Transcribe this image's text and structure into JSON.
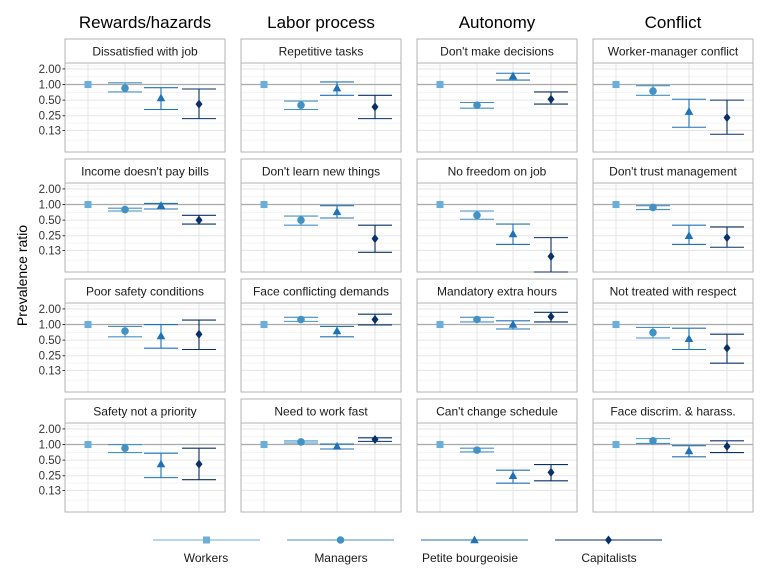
{
  "chart_data": {
    "type": "scatter",
    "ylabel": "Prevalence ratio",
    "y_scale": "log",
    "ylim": [
      0.05,
      2.6
    ],
    "y_ticks": [
      2.0,
      1.0,
      0.5,
      0.25,
      0.13
    ],
    "y_tick_labels": [
      "2.00",
      "1.00",
      "0.50",
      "0.25",
      "0.13"
    ],
    "reference_line": 1.0,
    "grid": true,
    "legend_position": "bottom",
    "column_headers": [
      "Rewards/hazards",
      "Labor process",
      "Autonomy",
      "Conflict"
    ],
    "series": [
      {
        "name": "Workers",
        "color": "#6baed6",
        "shape": "square"
      },
      {
        "name": "Managers",
        "color": "#4292c6",
        "shape": "circle"
      },
      {
        "name": "Petite bourgeoisie",
        "color": "#2171b5",
        "shape": "triangle"
      },
      {
        "name": "Capitalists",
        "color": "#08306b",
        "shape": "diamond"
      }
    ],
    "panels": [
      {
        "title": "Dissatisfied with job",
        "points": [
          {
            "est": 1.0,
            "lo": 1.0,
            "hi": 1.0
          },
          {
            "est": 0.85,
            "lo": 0.72,
            "hi": 1.08
          },
          {
            "est": 0.55,
            "lo": 0.33,
            "hi": 0.87
          },
          {
            "est": 0.42,
            "lo": 0.22,
            "hi": 0.82
          }
        ]
      },
      {
        "title": "Repetitive tasks",
        "points": [
          {
            "est": 1.0,
            "lo": 1.0,
            "hi": 1.0
          },
          {
            "est": 0.4,
            "lo": 0.33,
            "hi": 0.48
          },
          {
            "est": 0.85,
            "lo": 0.62,
            "hi": 1.12
          },
          {
            "est": 0.37,
            "lo": 0.22,
            "hi": 0.62
          }
        ]
      },
      {
        "title": "Don't make decisions",
        "points": [
          {
            "est": 1.0,
            "lo": 1.0,
            "hi": 1.0
          },
          {
            "est": 0.4,
            "lo": 0.35,
            "hi": 0.45
          },
          {
            "est": 1.45,
            "lo": 1.22,
            "hi": 1.65
          },
          {
            "est": 0.52,
            "lo": 0.42,
            "hi": 0.72
          }
        ]
      },
      {
        "title": "Worker-manager conflict",
        "points": [
          {
            "est": 1.0,
            "lo": 1.0,
            "hi": 1.0
          },
          {
            "est": 0.75,
            "lo": 0.62,
            "hi": 0.95
          },
          {
            "est": 0.3,
            "lo": 0.15,
            "hi": 0.52
          },
          {
            "est": 0.23,
            "lo": 0.11,
            "hi": 0.5
          }
        ]
      },
      {
        "title": "Income doesn't pay bills",
        "points": [
          {
            "est": 1.0,
            "lo": 1.0,
            "hi": 1.0
          },
          {
            "est": 0.8,
            "lo": 0.75,
            "hi": 0.85
          },
          {
            "est": 0.95,
            "lo": 0.82,
            "hi": 1.05
          },
          {
            "est": 0.5,
            "lo": 0.42,
            "hi": 0.62
          }
        ]
      },
      {
        "title": "Don't learn new things",
        "points": [
          {
            "est": 1.0,
            "lo": 1.0,
            "hi": 1.0
          },
          {
            "est": 0.5,
            "lo": 0.4,
            "hi": 0.6
          },
          {
            "est": 0.72,
            "lo": 0.55,
            "hi": 0.95
          },
          {
            "est": 0.22,
            "lo": 0.12,
            "hi": 0.4
          }
        ]
      },
      {
        "title": "No freedom on job",
        "points": [
          {
            "est": 1.0,
            "lo": 1.0,
            "hi": 1.0
          },
          {
            "est": 0.62,
            "lo": 0.52,
            "hi": 0.75
          },
          {
            "est": 0.27,
            "lo": 0.17,
            "hi": 0.42
          },
          {
            "est": 0.1,
            "lo": 0.05,
            "hi": 0.23
          }
        ]
      },
      {
        "title": "Don't trust management",
        "points": [
          {
            "est": 1.0,
            "lo": 1.0,
            "hi": 1.0
          },
          {
            "est": 0.88,
            "lo": 0.8,
            "hi": 0.95
          },
          {
            "est": 0.25,
            "lo": 0.17,
            "hi": 0.4
          },
          {
            "est": 0.23,
            "lo": 0.15,
            "hi": 0.37
          }
        ]
      },
      {
        "title": "Poor safety conditions",
        "points": [
          {
            "est": 1.0,
            "lo": 1.0,
            "hi": 1.0
          },
          {
            "est": 0.75,
            "lo": 0.58,
            "hi": 0.92
          },
          {
            "est": 0.6,
            "lo": 0.35,
            "hi": 1.0
          },
          {
            "est": 0.65,
            "lo": 0.33,
            "hi": 1.22
          }
        ]
      },
      {
        "title": "Face conflicting demands",
        "points": [
          {
            "est": 1.0,
            "lo": 1.0,
            "hi": 1.0
          },
          {
            "est": 1.25,
            "lo": 1.15,
            "hi": 1.38
          },
          {
            "est": 0.75,
            "lo": 0.58,
            "hi": 0.92
          },
          {
            "est": 1.25,
            "lo": 0.98,
            "hi": 1.58
          }
        ]
      },
      {
        "title": "Mandatory extra hours",
        "points": [
          {
            "est": 1.0,
            "lo": 1.0,
            "hi": 1.0
          },
          {
            "est": 1.25,
            "lo": 1.12,
            "hi": 1.38
          },
          {
            "est": 1.0,
            "lo": 0.82,
            "hi": 1.18
          },
          {
            "est": 1.42,
            "lo": 1.12,
            "hi": 1.72
          }
        ]
      },
      {
        "title": "Not treated with respect",
        "points": [
          {
            "est": 1.0,
            "lo": 1.0,
            "hi": 1.0
          },
          {
            "est": 0.7,
            "lo": 0.55,
            "hi": 0.88
          },
          {
            "est": 0.53,
            "lo": 0.33,
            "hi": 0.85
          },
          {
            "est": 0.35,
            "lo": 0.18,
            "hi": 0.65
          }
        ]
      },
      {
        "title": "Safety not a priority",
        "points": [
          {
            "est": 1.0,
            "lo": 1.0,
            "hi": 1.0
          },
          {
            "est": 0.85,
            "lo": 0.7,
            "hi": 1.0
          },
          {
            "est": 0.42,
            "lo": 0.23,
            "hi": 0.68
          },
          {
            "est": 0.42,
            "lo": 0.21,
            "hi": 0.85
          }
        ]
      },
      {
        "title": "Need to work fast",
        "points": [
          {
            "est": 1.0,
            "lo": 1.0,
            "hi": 1.0
          },
          {
            "est": 1.12,
            "lo": 1.07,
            "hi": 1.17
          },
          {
            "est": 0.92,
            "lo": 0.82,
            "hi": 1.02
          },
          {
            "est": 1.25,
            "lo": 1.15,
            "hi": 1.35
          }
        ]
      },
      {
        "title": "Can't change schedule",
        "points": [
          {
            "est": 1.0,
            "lo": 1.0,
            "hi": 1.0
          },
          {
            "est": 0.78,
            "lo": 0.72,
            "hi": 0.85
          },
          {
            "est": 0.25,
            "lo": 0.18,
            "hi": 0.32
          },
          {
            "est": 0.29,
            "lo": 0.2,
            "hi": 0.41
          }
        ]
      },
      {
        "title": "Face discrim. & harass.",
        "points": [
          {
            "est": 1.0,
            "lo": 1.0,
            "hi": 1.0
          },
          {
            "est": 1.18,
            "lo": 1.05,
            "hi": 1.3
          },
          {
            "est": 0.75,
            "lo": 0.58,
            "hi": 0.95
          },
          {
            "est": 0.92,
            "lo": 0.7,
            "hi": 1.18
          }
        ]
      }
    ]
  }
}
